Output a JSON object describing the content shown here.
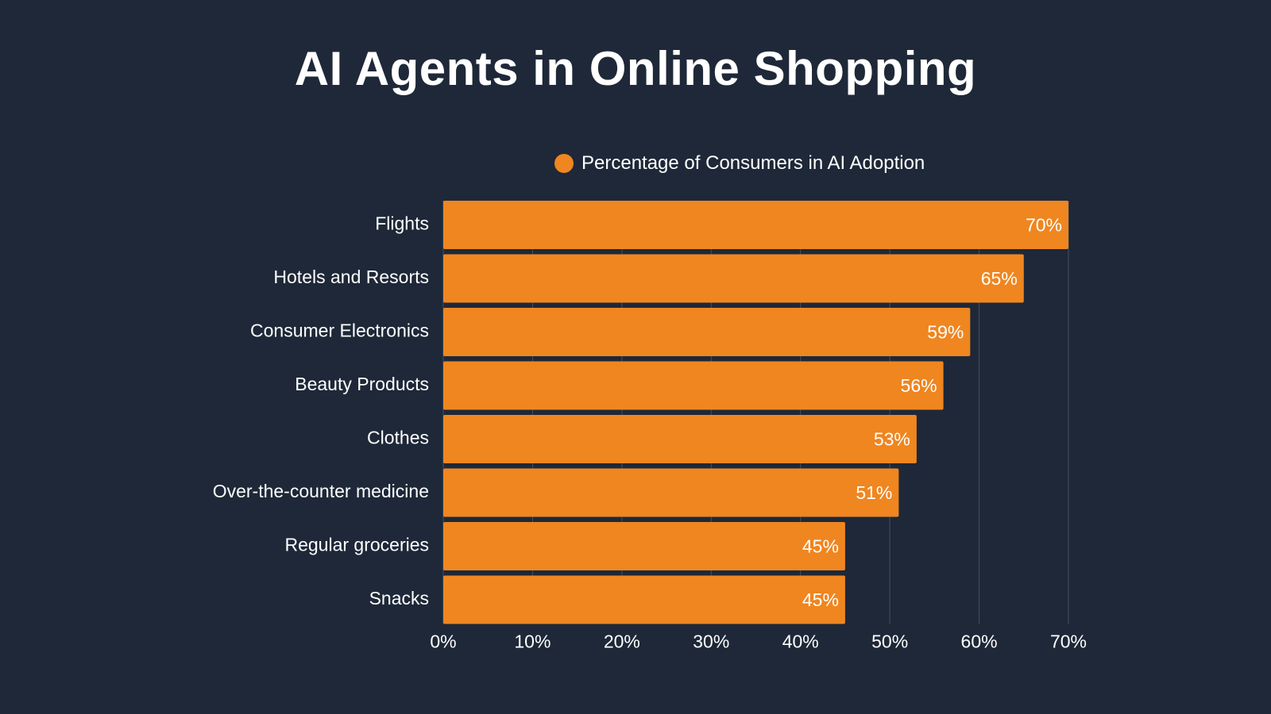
{
  "colors": {
    "background": "#1e2838",
    "bar": "#ef8620",
    "grid": "#44505f",
    "text": "#ffffff"
  },
  "chart_data": {
    "type": "bar",
    "orientation": "horizontal",
    "title": "AI Agents in Online Shopping",
    "legend_position": "top",
    "grid": true,
    "categories": [
      "Flights",
      "Hotels and Resorts",
      "Consumer Electronics",
      "Beauty Products",
      "Clothes",
      "Over-the-counter medicine",
      "Regular groceries",
      "Snacks"
    ],
    "series": [
      {
        "name": "Percentage of Consumers in AI Adoption",
        "values": [
          70,
          65,
          59,
          56,
          53,
          51,
          45,
          45
        ],
        "labels": [
          "70%",
          "65%",
          "59%",
          "56%",
          "53%",
          "51%",
          "45%",
          "45%"
        ]
      }
    ],
    "xlim": [
      0,
      70
    ],
    "xticks": [
      0,
      10,
      20,
      30,
      40,
      50,
      60,
      70
    ],
    "xtick_labels": [
      "0%",
      "10%",
      "20%",
      "30%",
      "40%",
      "50%",
      "60%",
      "70%"
    ]
  }
}
